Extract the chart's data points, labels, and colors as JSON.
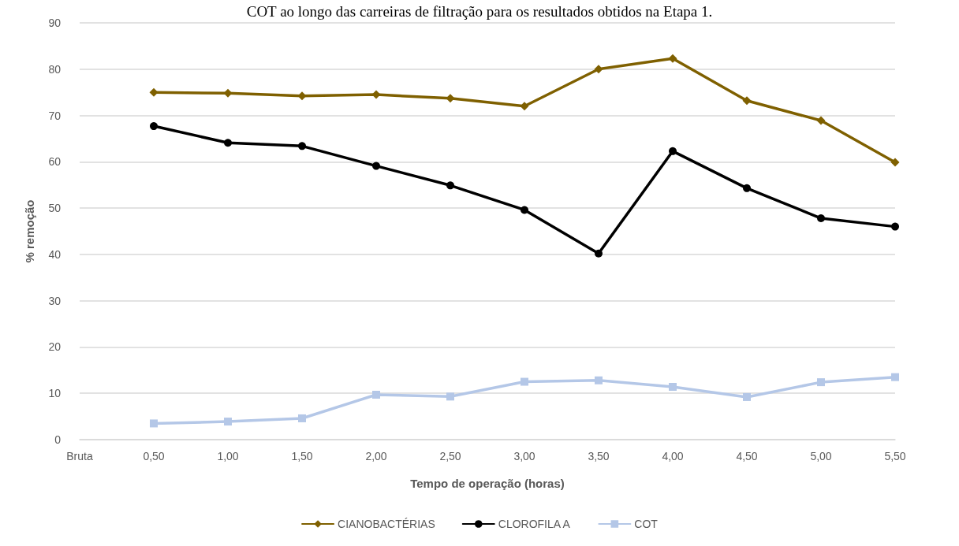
{
  "chart_data": {
    "type": "line",
    "title": "COT ao longo das carreiras de filtração para os resultados obtidos na Etapa 1.",
    "xlabel": "Tempo de operação (horas)",
    "ylabel": "% remoção",
    "categories": [
      "Bruta",
      "0,50",
      "1,00",
      "1,50",
      "2,00",
      "2,50",
      "3,00",
      "3,50",
      "4,00",
      "4,50",
      "5,00",
      "5,50"
    ],
    "series": [
      {
        "name": "CIANOBACTÉRIAS",
        "color": "#7f6000",
        "marker": "diamond",
        "values": [
          null,
          75.0,
          74.8,
          74.2,
          74.5,
          73.7,
          72.0,
          80.0,
          82.3,
          73.2,
          68.9,
          59.9
        ]
      },
      {
        "name": "CLOROFILA A",
        "color": "#000000",
        "marker": "circle",
        "values": [
          null,
          67.7,
          64.1,
          63.4,
          59.1,
          54.9,
          49.6,
          40.2,
          62.3,
          54.3,
          47.8,
          46.0
        ]
      },
      {
        "name": "COT",
        "color": "#b4c7e7",
        "marker": "square",
        "values": [
          null,
          3.5,
          3.9,
          4.6,
          9.7,
          9.3,
          12.5,
          12.8,
          11.4,
          9.2,
          12.4,
          13.5
        ]
      }
    ],
    "ylim": [
      0,
      90
    ],
    "yticks": [
      0,
      10,
      20,
      30,
      40,
      50,
      60,
      70,
      80,
      90
    ],
    "grid": "y",
    "legend": "bottom",
    "line_style": "solid"
  }
}
